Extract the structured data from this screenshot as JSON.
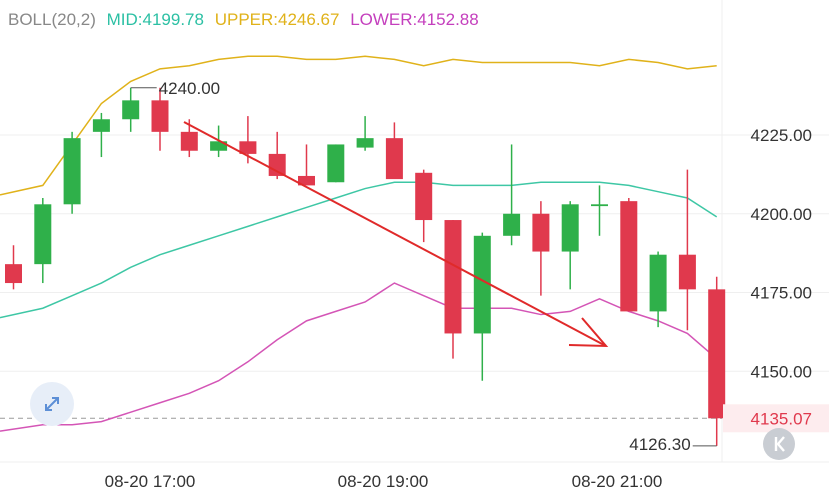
{
  "header": {
    "indicator": "BOLL(20,2)",
    "mid_label": "MID:4199.78",
    "upper_label": "UPPER:4246.67",
    "lower_label": "LOWER:4152.88"
  },
  "colors": {
    "up": "#2fb04a",
    "down": "#e0394d",
    "mid": "#3ec7a5",
    "upper": "#e0b21a",
    "lower": "#d455b6",
    "arrow": "#e02a2a",
    "grid": "#efefef"
  },
  "icons": {
    "expand": "expand-arrows-icon",
    "back": "chevron-left-icon"
  },
  "chart_data": {
    "type": "candlestick",
    "ylim": [
      4120,
      4260
    ],
    "y_ticks": [
      "4225.00",
      "4200.00",
      "4175.00",
      "4150.00"
    ],
    "x_ticks": [
      "08-20 17:00",
      "08-20 19:00",
      "08-20 21:00"
    ],
    "max_label": "4240.00",
    "min_label": "4126.30",
    "last_price_label": "4135.07",
    "last_price": 4135.07,
    "candles": [
      {
        "o": 4184,
        "h": 4190,
        "l": 4176,
        "c": 4178
      },
      {
        "o": 4184,
        "h": 4205,
        "l": 4178,
        "c": 4203
      },
      {
        "o": 4203,
        "h": 4226,
        "l": 4200,
        "c": 4224
      },
      {
        "o": 4226,
        "h": 4232,
        "l": 4218,
        "c": 4230
      },
      {
        "o": 4230,
        "h": 4240,
        "l": 4226,
        "c": 4236
      },
      {
        "o": 4236,
        "h": 4240,
        "l": 4220,
        "c": 4226
      },
      {
        "o": 4226,
        "h": 4230,
        "l": 4218,
        "c": 4220
      },
      {
        "o": 4220,
        "h": 4228,
        "l": 4218,
        "c": 4223
      },
      {
        "o": 4223,
        "h": 4231,
        "l": 4216,
        "c": 4219
      },
      {
        "o": 4219,
        "h": 4226,
        "l": 4211,
        "c": 4212
      },
      {
        "o": 4212,
        "h": 4222,
        "l": 4210,
        "c": 4209
      },
      {
        "o": 4210,
        "h": 4222,
        "l": 4210,
        "c": 4222
      },
      {
        "o": 4221,
        "h": 4231,
        "l": 4220,
        "c": 4224
      },
      {
        "o": 4224,
        "h": 4229,
        "l": 4212,
        "c": 4211
      },
      {
        "o": 4213,
        "h": 4214,
        "l": 4191,
        "c": 4198
      },
      {
        "o": 4198,
        "h": 4198,
        "l": 4154,
        "c": 4162
      },
      {
        "o": 4162,
        "h": 4194,
        "l": 4147,
        "c": 4193
      },
      {
        "o": 4193,
        "h": 4222,
        "l": 4190,
        "c": 4200
      },
      {
        "o": 4200,
        "h": 4204,
        "l": 4174,
        "c": 4188
      },
      {
        "o": 4188,
        "h": 4204,
        "l": 4176,
        "c": 4203
      },
      {
        "o": 4203,
        "h": 4209,
        "l": 4193,
        "c": 4203
      },
      {
        "o": 4204,
        "h": 4205,
        "l": 4169,
        "c": 4169
      },
      {
        "o": 4169,
        "h": 4188,
        "l": 4164,
        "c": 4187
      },
      {
        "o": 4187,
        "h": 4214,
        "l": 4163,
        "c": 4176
      },
      {
        "o": 4176,
        "h": 4180,
        "l": 4126.3,
        "c": 4135.07
      }
    ],
    "upper_band": [
      4206,
      4209,
      4222,
      4235,
      4242,
      4246,
      4247,
      4249,
      4250,
      4250,
      4249,
      4249,
      4250,
      4249,
      4247,
      4249,
      4248,
      4248,
      4248,
      4248,
      4247,
      4249,
      4248,
      4246,
      4247
    ],
    "mid_band": [
      4167,
      4170,
      4174,
      4178,
      4183,
      4187,
      4190,
      4193,
      4196,
      4199,
      4202,
      4205,
      4208,
      4210,
      4210,
      4209,
      4209,
      4209,
      4210,
      4210,
      4210,
      4209,
      4207,
      4205,
      4199
    ],
    "lower_band": [
      4131,
      4133,
      4133,
      4134,
      4137,
      4140,
      4143,
      4147,
      4153,
      4160,
      4166,
      4169,
      4172,
      4178,
      4174,
      4170,
      4170,
      4170,
      4168,
      4169,
      4173,
      4169,
      4166,
      4162,
      4154
    ]
  }
}
